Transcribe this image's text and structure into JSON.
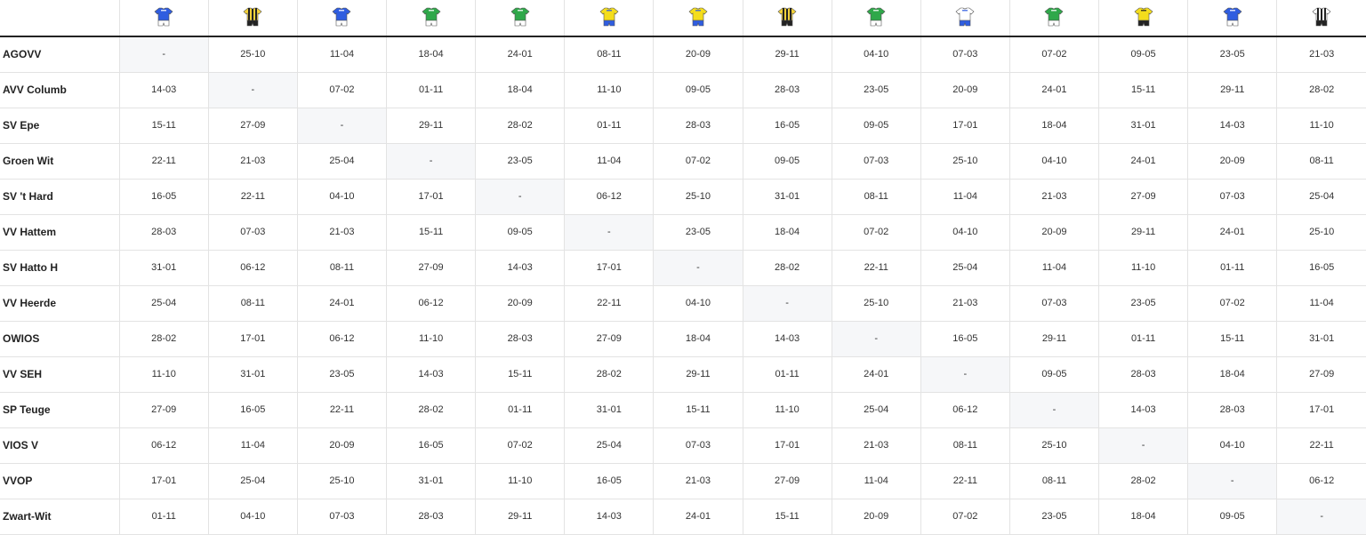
{
  "kits": [
    {
      "team": "AGOVV",
      "shirt": "#2f5de0",
      "stripe": "#ffffff",
      "shorts": "#ffffff",
      "style": "plain"
    },
    {
      "team": "AVV Columb",
      "shirt": "#f3d23a",
      "stripe": "#222222",
      "shorts": "#222222",
      "style": "stripes"
    },
    {
      "team": "SV Epe",
      "shirt": "#2f5de0",
      "stripe": "#ffffff",
      "shorts": "#ffffff",
      "style": "plain"
    },
    {
      "team": "Groen Wit",
      "shirt": "#2fa84a",
      "stripe": "#ffffff",
      "shorts": "#ffffff",
      "style": "plain"
    },
    {
      "team": "SV 't Hard",
      "shirt": "#2fa84a",
      "stripe": "#ffffff",
      "shorts": "#ffffff",
      "style": "plain"
    },
    {
      "team": "VV Hattem",
      "shirt": "#f4dd1c",
      "stripe": "#2f5de0",
      "shorts": "#2f5de0",
      "style": "plain"
    },
    {
      "team": "SV Hatto H",
      "shirt": "#f4dd1c",
      "stripe": "#2f5de0",
      "shorts": "#2f5de0",
      "style": "plain"
    },
    {
      "team": "VV Heerde",
      "shirt": "#f3d23a",
      "stripe": "#222222",
      "shorts": "#222222",
      "style": "stripes"
    },
    {
      "team": "OWIOS",
      "shirt": "#2fa84a",
      "stripe": "#ffffff",
      "shorts": "#ffffff",
      "style": "plain"
    },
    {
      "team": "VV SEH",
      "shirt": "#ffffff",
      "stripe": "#2f5de0",
      "shorts": "#2f5de0",
      "style": "plain"
    },
    {
      "team": "SP Teuge",
      "shirt": "#2fa84a",
      "stripe": "#ffffff",
      "shorts": "#ffffff",
      "style": "plain"
    },
    {
      "team": "VIOS V",
      "shirt": "#f4dd1c",
      "stripe": "#222222",
      "shorts": "#222222",
      "style": "plain"
    },
    {
      "team": "VVOP",
      "shirt": "#2f5de0",
      "stripe": "#ffffff",
      "shorts": "#ffffff",
      "style": "plain"
    },
    {
      "team": "Zwart-Wit",
      "shirt": "#ffffff",
      "stripe": "#222222",
      "shorts": "#222222",
      "style": "stripes"
    }
  ],
  "rows": [
    {
      "team": "AGOVV",
      "cells": [
        "-",
        "25-10",
        "11-04",
        "18-04",
        "24-01",
        "08-11",
        "20-09",
        "29-11",
        "04-10",
        "07-03",
        "07-02",
        "09-05",
        "23-05",
        "21-03"
      ]
    },
    {
      "team": "AVV Columb",
      "cells": [
        "14-03",
        "-",
        "07-02",
        "01-11",
        "18-04",
        "11-10",
        "09-05",
        "28-03",
        "23-05",
        "20-09",
        "24-01",
        "15-11",
        "29-11",
        "28-02"
      ]
    },
    {
      "team": "SV Epe",
      "cells": [
        "15-11",
        "27-09",
        "-",
        "29-11",
        "28-02",
        "01-11",
        "28-03",
        "16-05",
        "09-05",
        "17-01",
        "18-04",
        "31-01",
        "14-03",
        "11-10"
      ]
    },
    {
      "team": "Groen Wit",
      "cells": [
        "22-11",
        "21-03",
        "25-04",
        "-",
        "23-05",
        "11-04",
        "07-02",
        "09-05",
        "07-03",
        "25-10",
        "04-10",
        "24-01",
        "20-09",
        "08-11"
      ]
    },
    {
      "team": "SV 't Hard",
      "cells": [
        "16-05",
        "22-11",
        "04-10",
        "17-01",
        "-",
        "06-12",
        "25-10",
        "31-01",
        "08-11",
        "11-04",
        "21-03",
        "27-09",
        "07-03",
        "25-04"
      ]
    },
    {
      "team": "VV Hattem",
      "cells": [
        "28-03",
        "07-03",
        "21-03",
        "15-11",
        "09-05",
        "-",
        "23-05",
        "18-04",
        "07-02",
        "04-10",
        "20-09",
        "29-11",
        "24-01",
        "25-10"
      ]
    },
    {
      "team": "SV Hatto H",
      "cells": [
        "31-01",
        "06-12",
        "08-11",
        "27-09",
        "14-03",
        "17-01",
        "-",
        "28-02",
        "22-11",
        "25-04",
        "11-04",
        "11-10",
        "01-11",
        "16-05"
      ]
    },
    {
      "team": "VV Heerde",
      "cells": [
        "25-04",
        "08-11",
        "24-01",
        "06-12",
        "20-09",
        "22-11",
        "04-10",
        "-",
        "25-10",
        "21-03",
        "07-03",
        "23-05",
        "07-02",
        "11-04"
      ]
    },
    {
      "team": "OWIOS",
      "cells": [
        "28-02",
        "17-01",
        "06-12",
        "11-10",
        "28-03",
        "27-09",
        "18-04",
        "14-03",
        "-",
        "16-05",
        "29-11",
        "01-11",
        "15-11",
        "31-01"
      ]
    },
    {
      "team": "VV SEH",
      "cells": [
        "11-10",
        "31-01",
        "23-05",
        "14-03",
        "15-11",
        "28-02",
        "29-11",
        "01-11",
        "24-01",
        "-",
        "09-05",
        "28-03",
        "18-04",
        "27-09"
      ]
    },
    {
      "team": "SP Teuge",
      "cells": [
        "27-09",
        "16-05",
        "22-11",
        "28-02",
        "01-11",
        "31-01",
        "15-11",
        "11-10",
        "25-04",
        "06-12",
        "-",
        "14-03",
        "28-03",
        "17-01"
      ]
    },
    {
      "team": "VIOS V",
      "cells": [
        "06-12",
        "11-04",
        "20-09",
        "16-05",
        "07-02",
        "25-04",
        "07-03",
        "17-01",
        "21-03",
        "08-11",
        "25-10",
        "-",
        "04-10",
        "22-11"
      ]
    },
    {
      "team": "VVOP",
      "cells": [
        "17-01",
        "25-04",
        "25-10",
        "31-01",
        "11-10",
        "16-05",
        "21-03",
        "27-09",
        "11-04",
        "22-11",
        "08-11",
        "28-02",
        "-",
        "06-12"
      ]
    },
    {
      "team": "Zwart-Wit",
      "cells": [
        "01-11",
        "04-10",
        "07-03",
        "28-03",
        "29-11",
        "14-03",
        "24-01",
        "15-11",
        "20-09",
        "07-02",
        "23-05",
        "18-04",
        "09-05",
        "-"
      ]
    }
  ]
}
